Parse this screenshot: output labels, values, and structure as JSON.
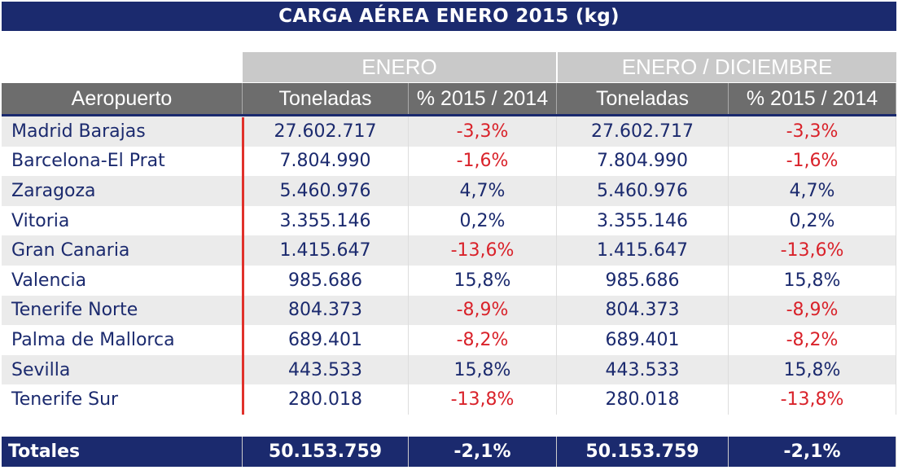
{
  "title": "CARGA AÉREA ENERO 2015 (kg)",
  "groups": [
    "ENERO",
    "ENERO / DICIEMBRE"
  ],
  "headers": [
    "Aeropuerto",
    "Toneladas",
    "% 2015 / 2014",
    "Toneladas",
    "% 2015 / 2014"
  ],
  "rows": [
    [
      "Madrid Barajas",
      "27.602.717",
      "-3,3%",
      "27.602.717",
      "-3,3%"
    ],
    [
      "Barcelona-El Prat",
      "7.804.990",
      "-1,6%",
      "7.804.990",
      "-1,6%"
    ],
    [
      "Zaragoza",
      "5.460.976",
      "4,7%",
      "5.460.976",
      "4,7%"
    ],
    [
      "Vitoria",
      "3.355.146",
      "0,2%",
      "3.355.146",
      "0,2%"
    ],
    [
      "Gran Canaria",
      "1.415.647",
      "-13,6%",
      "1.415.647",
      "-13,6%"
    ],
    [
      "Valencia",
      "985.686",
      "15,8%",
      "985.686",
      "15,8%"
    ],
    [
      "Tenerife Norte",
      "804.373",
      "-8,9%",
      "804.373",
      "-8,9%"
    ],
    [
      "Palma de Mallorca",
      "689.401",
      "-8,2%",
      "689.401",
      "-8,2%"
    ],
    [
      "Sevilla",
      "443.533",
      "15,8%",
      "443.533",
      "15,8%"
    ],
    [
      "Tenerife Sur",
      "280.018",
      "-13,8%",
      "280.018",
      "-13,8%"
    ]
  ],
  "totals": [
    "Totales",
    "50.153.759",
    "-2,1%",
    "50.153.759",
    "-2,1%"
  ],
  "colors": {
    "navy": "#1b2a6e",
    "negative": "#d9222a",
    "header": "#6d6d6d",
    "group": "#c9c9c9"
  }
}
